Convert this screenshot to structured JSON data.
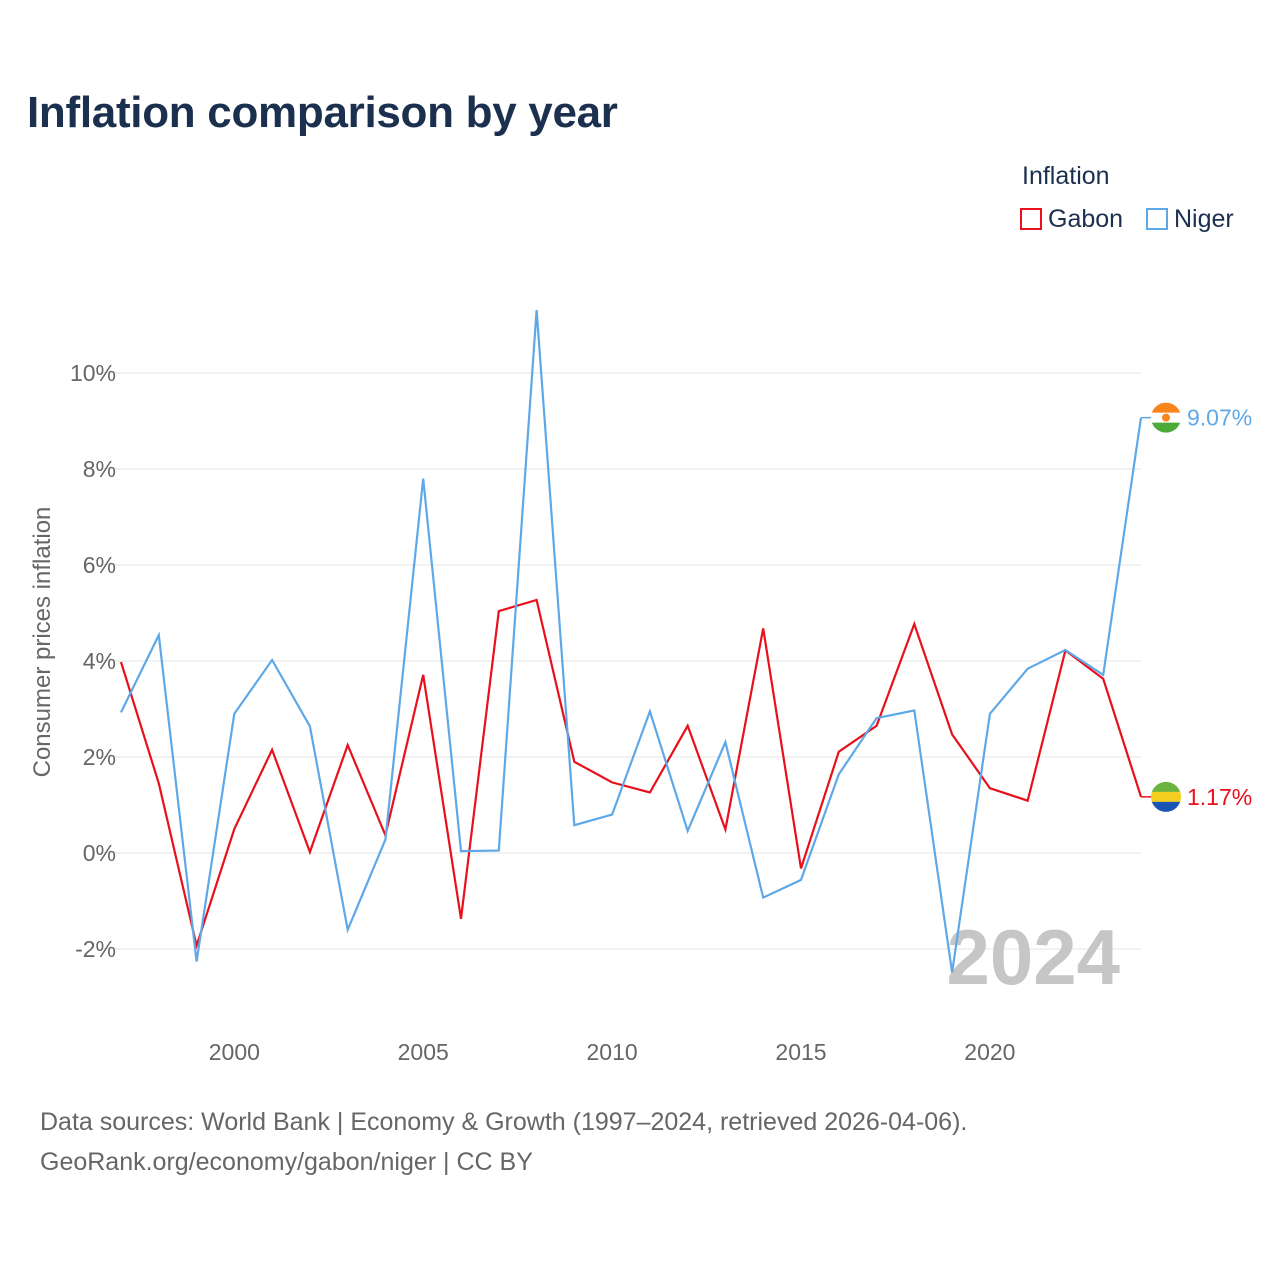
{
  "title": "Inflation comparison by year",
  "legend": {
    "title": "Inflation",
    "items": [
      {
        "label": "Gabon",
        "color": "#e8101a"
      },
      {
        "label": "Niger",
        "color": "#5ea8e8"
      }
    ]
  },
  "footer": {
    "line1": "Data sources: World Bank | Economy & Growth (1997–2024, retrieved 2026-04-06).",
    "line2": "GeoRank.org/economy/gabon/niger | CC BY"
  },
  "chart_data": {
    "type": "line",
    "title": "Inflation comparison by year",
    "xlabel": "",
    "ylabel": "Consumer prices inflation",
    "x": [
      1997,
      1998,
      1999,
      2000,
      2001,
      2002,
      2003,
      2004,
      2005,
      2006,
      2007,
      2008,
      2009,
      2010,
      2011,
      2012,
      2013,
      2014,
      2015,
      2016,
      2017,
      2018,
      2019,
      2020,
      2021,
      2022,
      2023,
      2024
    ],
    "xlim": [
      1997,
      2024
    ],
    "ylim": [
      -2,
      10
    ],
    "x_ticks": [
      {
        "value": 2000,
        "label": "2000"
      },
      {
        "value": 2005,
        "label": "2005"
      },
      {
        "value": 2010,
        "label": "2010"
      },
      {
        "value": 2015,
        "label": "2015"
      },
      {
        "value": 2020,
        "label": "2020"
      }
    ],
    "y_ticks": [
      {
        "value": 10,
        "label": "10%"
      },
      {
        "value": 8,
        "label": "8%"
      },
      {
        "value": 6,
        "label": "6%"
      },
      {
        "value": 4,
        "label": "4%"
      },
      {
        "value": 2,
        "label": "2%"
      },
      {
        "value": 0,
        "label": "0%"
      },
      {
        "value": -2,
        "label": "-2%"
      }
    ],
    "grid": true,
    "year_watermark": "2024",
    "series": [
      {
        "name": "Gabon",
        "color": "#e8101a",
        "end_label": "1.17%",
        "values": [
          3.98,
          1.45,
          -1.93,
          0.5,
          2.15,
          0.02,
          2.25,
          0.37,
          3.71,
          -1.37,
          5.04,
          5.27,
          1.9,
          1.47,
          1.26,
          2.65,
          0.49,
          4.68,
          -0.32,
          2.11,
          2.65,
          4.77,
          2.47,
          1.35,
          1.09,
          4.22,
          3.63,
          1.17
        ]
      },
      {
        "name": "Niger",
        "color": "#5ea8e8",
        "end_label": "9.07%",
        "values": [
          2.93,
          4.54,
          -2.26,
          2.9,
          4.02,
          2.64,
          -1.6,
          0.28,
          7.8,
          0.04,
          0.05,
          11.31,
          0.58,
          0.8,
          2.95,
          0.46,
          2.31,
          -0.93,
          -0.56,
          1.64,
          2.81,
          2.97,
          -2.49,
          2.9,
          3.84,
          4.23,
          3.71,
          9.07
        ]
      }
    ]
  }
}
